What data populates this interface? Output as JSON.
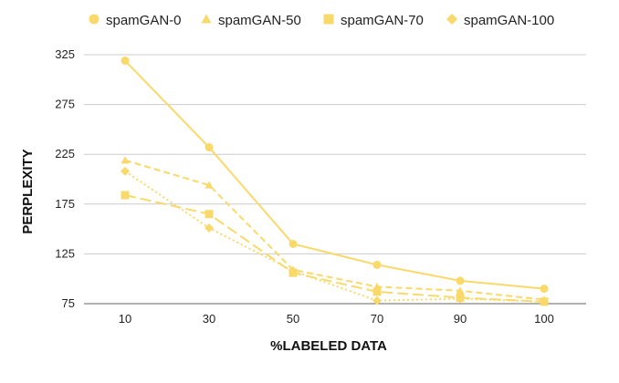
{
  "chart_data": {
    "type": "line",
    "title": "",
    "xlabel": "%LABELED DATA",
    "ylabel": "PERPLEXITY",
    "x": [
      10,
      30,
      50,
      70,
      90,
      100
    ],
    "x_ticks": [
      "10",
      "30",
      "50",
      "70",
      "90",
      "100"
    ],
    "y_ticks": [
      "75",
      "125",
      "175",
      "225",
      "275",
      "325"
    ],
    "ylim": [
      75,
      325
    ],
    "grid": true,
    "legend_position": "top",
    "color": "#fad96b",
    "series": [
      {
        "name": "spamGAN-0",
        "marker": "circle",
        "dash": "solid",
        "values": [
          319,
          232,
          135,
          114,
          98,
          90
        ]
      },
      {
        "name": "spamGAN-50",
        "marker": "triangle",
        "dash": "dashed",
        "values": [
          219,
          194,
          109,
          92,
          88,
          79
        ]
      },
      {
        "name": "spamGAN-70",
        "marker": "square",
        "dash": "longdash",
        "values": [
          184,
          165,
          106,
          87,
          81,
          77
        ]
      },
      {
        "name": "spamGAN-100",
        "marker": "diamond",
        "dash": "dotted",
        "values": [
          208,
          151,
          108,
          78,
          80,
          77
        ]
      }
    ]
  }
}
